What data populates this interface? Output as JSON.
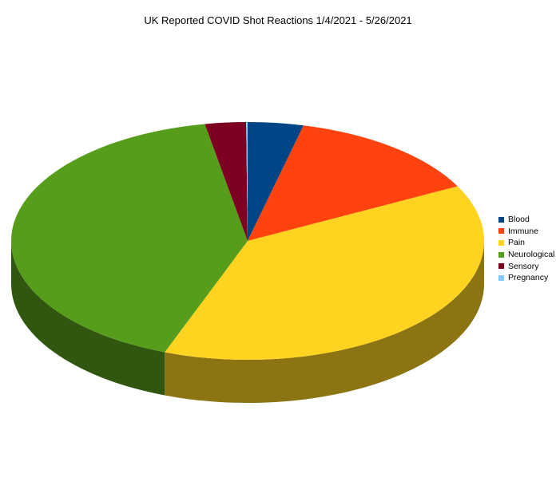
{
  "chart_data": {
    "type": "pie",
    "title": "UK Reported COVID Shot Reactions 1/4/2021 - 5/26/2021",
    "categories": [
      "Blood",
      "Immune",
      "Pain",
      "Neurological",
      "Sensory",
      "Pregnancy"
    ],
    "values": [
      3.8,
      13.6,
      38.3,
      41.4,
      2.8,
      0.1
    ],
    "colors": [
      "#004586",
      "#ff420e",
      "#ffd320",
      "#579d1c",
      "#7e0021",
      "#83caff"
    ],
    "legend_position": "right",
    "three_d": true
  }
}
